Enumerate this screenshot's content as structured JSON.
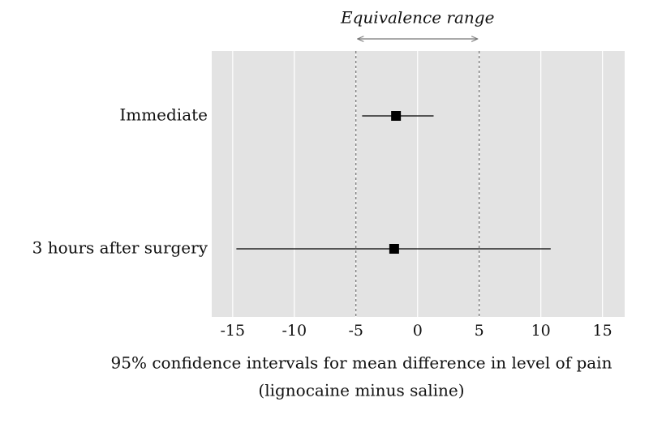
{
  "chart_data": {
    "type": "forest",
    "categories": [
      "Immediate",
      "3 hours after surgery"
    ],
    "values": [
      -1.75,
      -1.9
    ],
    "lower": [
      -4.5,
      -14.7
    ],
    "upper": [
      1.3,
      10.8
    ],
    "color": "#000000",
    "xlim": [
      -16.7,
      16.8
    ],
    "xticks": [
      -15,
      -10,
      -5,
      0,
      5,
      10,
      15
    ],
    "grid": true,
    "reference_lines": [
      -5,
      5
    ],
    "annotation": "Equivalence range",
    "xlabel": [
      "95% confidence intervals for mean difference in level of pain",
      "(lignocaine minus saline)"
    ]
  }
}
